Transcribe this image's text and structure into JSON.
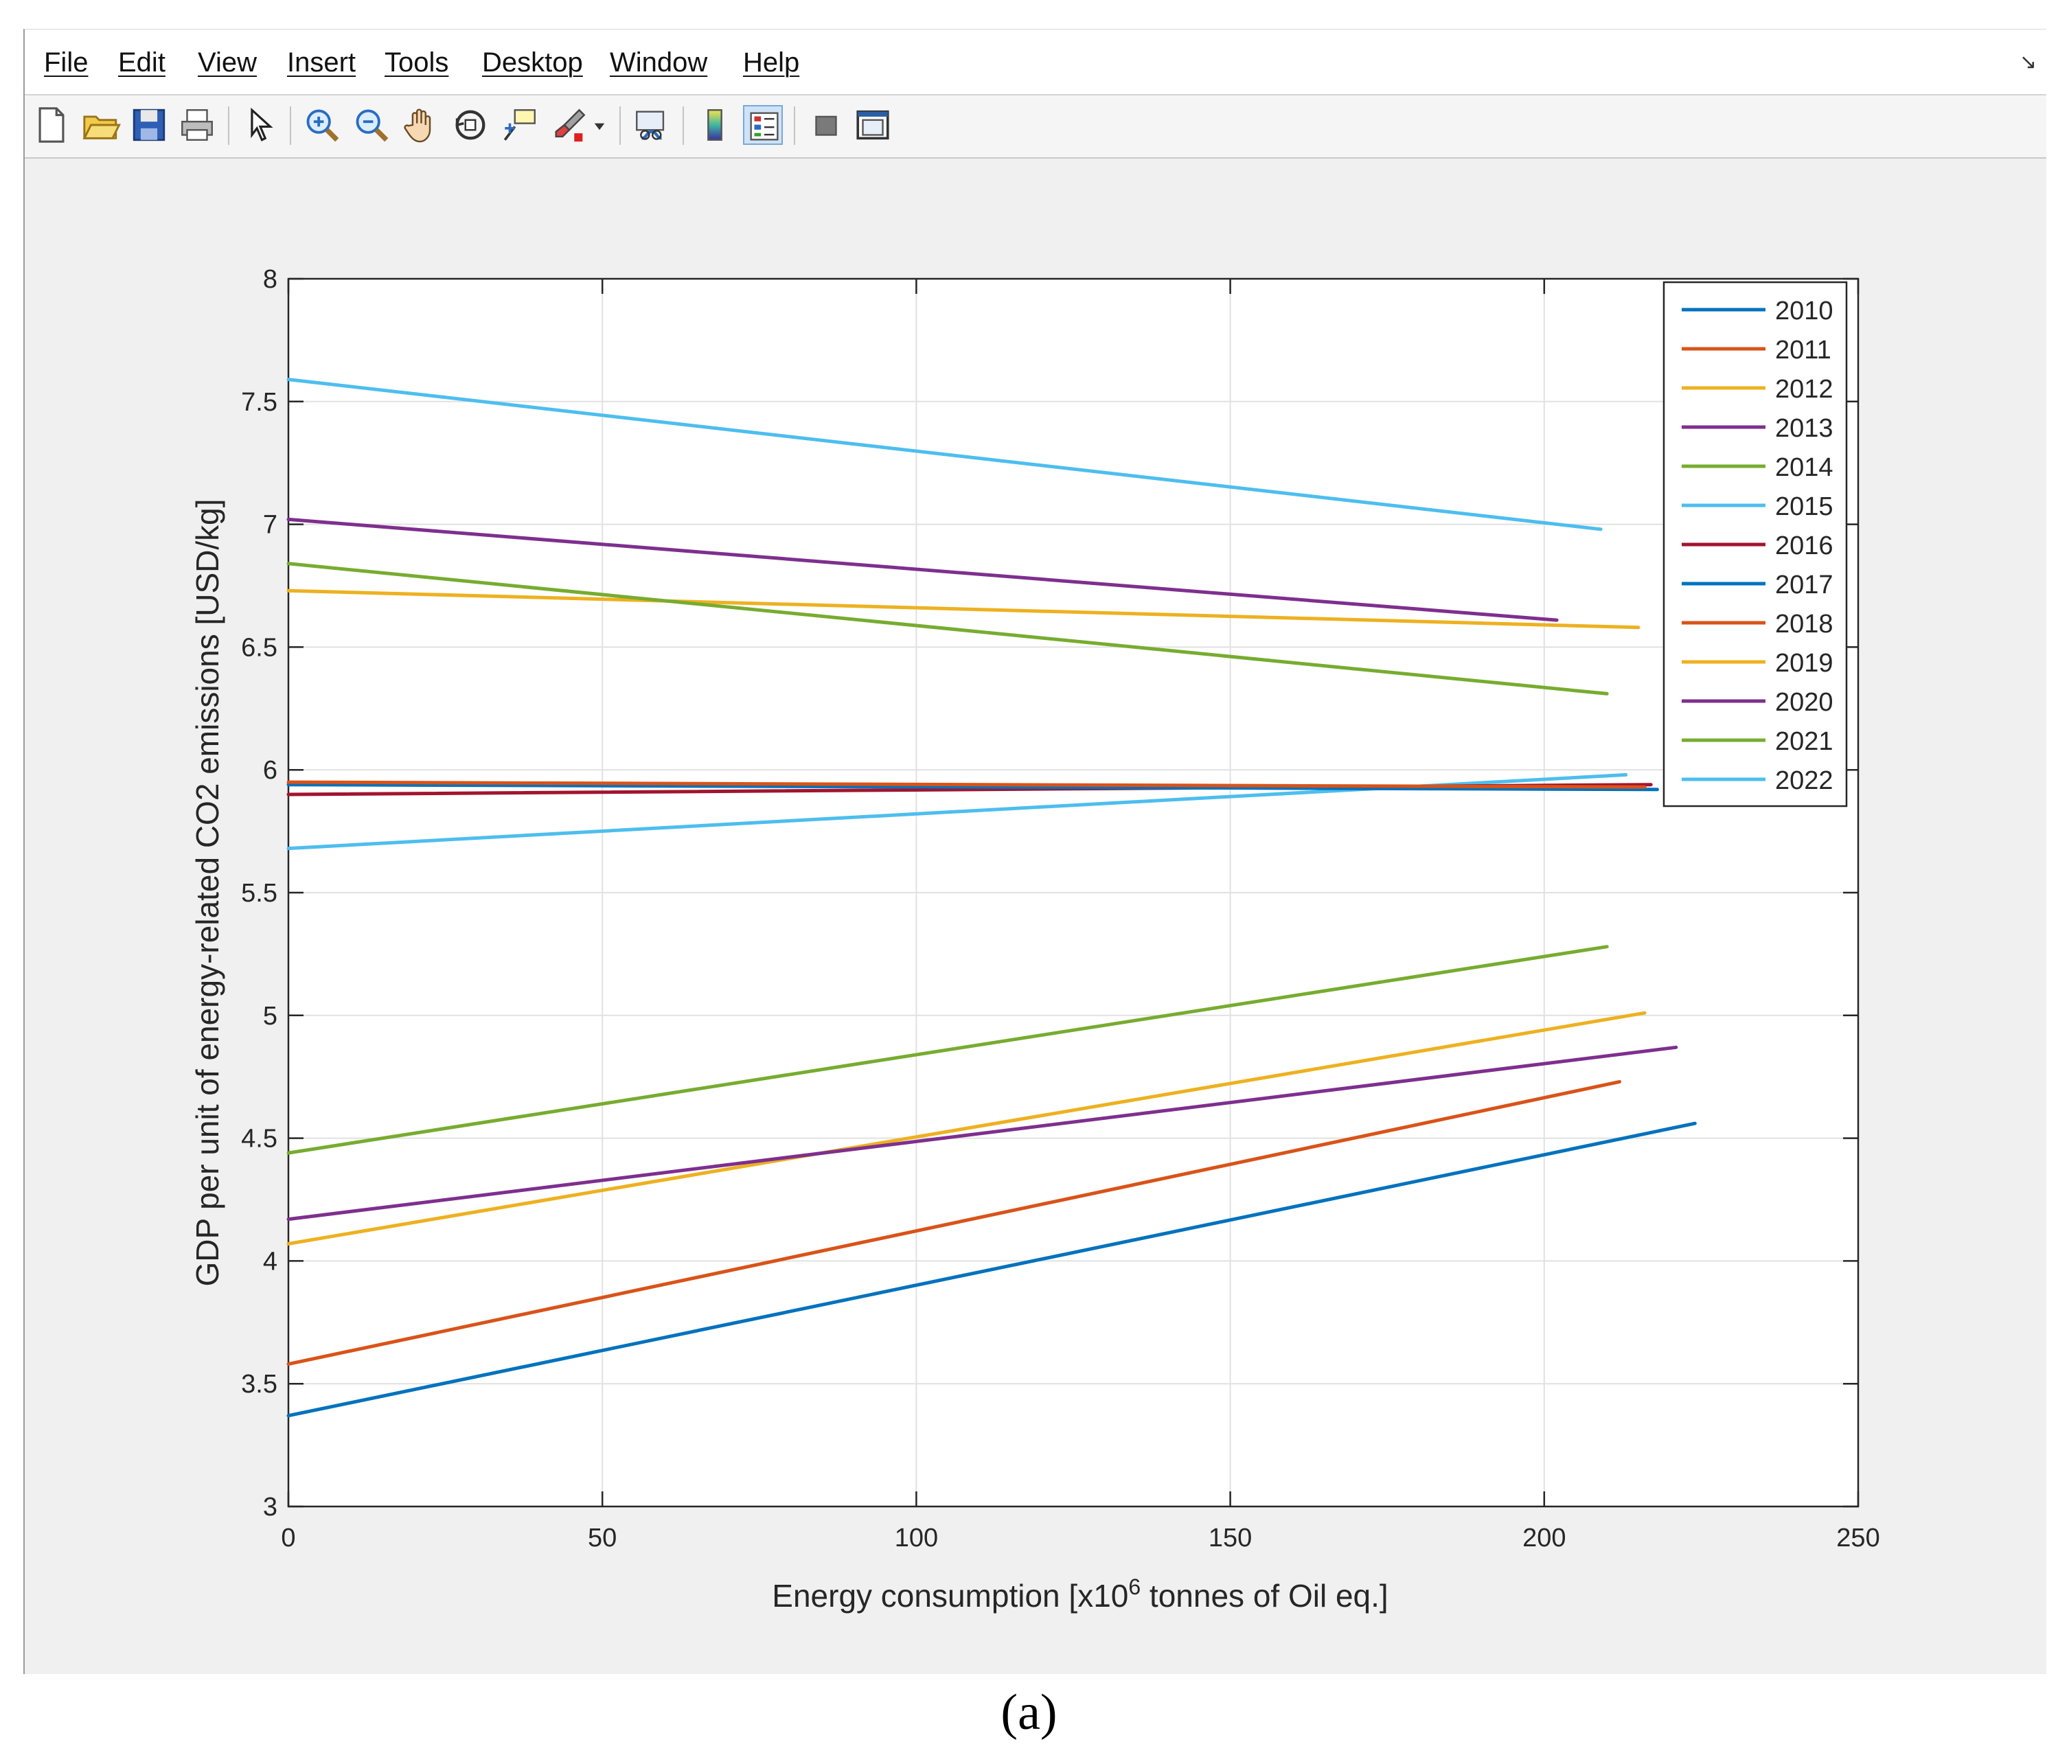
{
  "menu": {
    "items": [
      "File",
      "Edit",
      "View",
      "Insert",
      "Tools",
      "Desktop",
      "Window",
      "Help"
    ],
    "undock_glyph": "↘"
  },
  "toolbar": {
    "icons": [
      "new-figure-icon",
      "open-file-icon",
      "save-icon",
      "print-icon",
      "pointer-icon",
      "zoom-in-icon",
      "zoom-out-icon",
      "pan-hand-icon",
      "rotate-3d-icon",
      "data-cursor-icon",
      "brush-icon",
      "brush-dropdown-icon",
      "link-plot-icon",
      "colorbar-icon",
      "legend-icon",
      "hide-plot-tools-icon",
      "show-plot-tools-icon"
    ]
  },
  "caption": "(a)",
  "chart_data": {
    "type": "line",
    "title": "",
    "xlabel": "Energy consumption [x10",
    "xlabel_superscript": "6",
    "xlabel_suffix": " tonnes of Oil eq.]",
    "ylabel": "GDP per unit of energy-related CO2 emissions [USD/kg]",
    "xlim": [
      0,
      250
    ],
    "ylim": [
      3,
      8
    ],
    "xticks": [
      "0",
      "50",
      "100",
      "150",
      "200",
      "250"
    ],
    "yticks": [
      "3",
      "3.5",
      "4",
      "4.5",
      "5",
      "5.5",
      "6",
      "6.5",
      "7",
      "7.5",
      "8"
    ],
    "grid": true,
    "legend_position": "top-right",
    "series": [
      {
        "name": "2010",
        "color": "#0072BD",
        "x": [
          0,
          224
        ],
        "y": [
          3.37,
          4.56
        ]
      },
      {
        "name": "2011",
        "color": "#D95319",
        "x": [
          0,
          212
        ],
        "y": [
          3.58,
          4.73
        ]
      },
      {
        "name": "2012",
        "color": "#EDB120",
        "x": [
          0,
          216
        ],
        "y": [
          4.07,
          5.01
        ]
      },
      {
        "name": "2013",
        "color": "#7E2F8E",
        "x": [
          0,
          221
        ],
        "y": [
          4.17,
          4.87
        ]
      },
      {
        "name": "2014",
        "color": "#77AC30",
        "x": [
          0,
          210
        ],
        "y": [
          4.44,
          5.28
        ]
      },
      {
        "name": "2015",
        "color": "#4DBEEE",
        "x": [
          0,
          213
        ],
        "y": [
          5.68,
          5.98
        ]
      },
      {
        "name": "2016",
        "color": "#A2142F",
        "x": [
          0,
          217
        ],
        "y": [
          5.9,
          5.94
        ]
      },
      {
        "name": "2017",
        "color": "#0072BD",
        "x": [
          0,
          218
        ],
        "y": [
          5.94,
          5.92
        ]
      },
      {
        "name": "2018",
        "color": "#D95319",
        "x": [
          0,
          216
        ],
        "y": [
          5.95,
          5.93
        ]
      },
      {
        "name": "2019",
        "color": "#EDB120",
        "x": [
          0,
          215
        ],
        "y": [
          6.73,
          6.58
        ]
      },
      {
        "name": "2020",
        "color": "#7E2F8E",
        "x": [
          0,
          202
        ],
        "y": [
          7.02,
          6.61
        ]
      },
      {
        "name": "2021",
        "color": "#77AC30",
        "x": [
          0,
          210
        ],
        "y": [
          6.84,
          6.31
        ]
      },
      {
        "name": "2022",
        "color": "#4DBEEE",
        "x": [
          0,
          209
        ],
        "y": [
          7.59,
          6.98
        ]
      }
    ]
  }
}
